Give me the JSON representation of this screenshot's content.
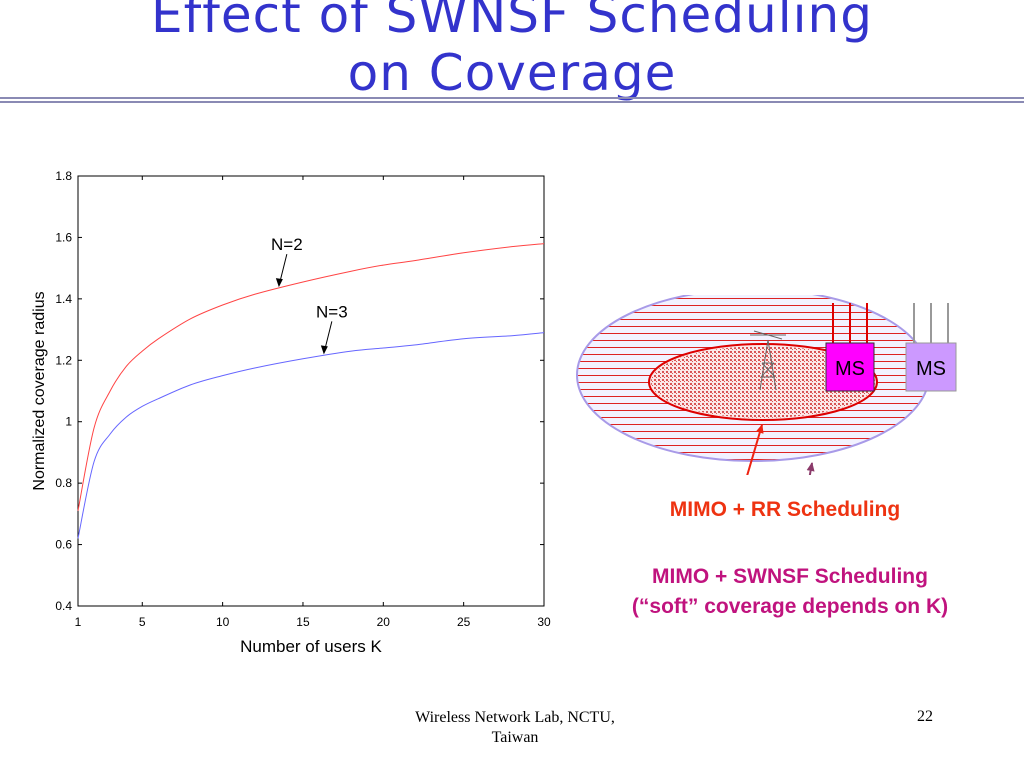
{
  "slide": {
    "title_line1": "Effect of SWNSF Scheduling",
    "title_line2": "on Coverage",
    "footer_line1": "Wireless Network Lab, NCTU,",
    "footer_line2": "Taiwan",
    "page_number": "22"
  },
  "chart_data": {
    "type": "line",
    "xlabel": "Number of users K",
    "ylabel": "Normalized coverage radius",
    "xlim": [
      1,
      30
    ],
    "ylim": [
      0.4,
      1.8
    ],
    "xticks": [
      1,
      5,
      10,
      15,
      20,
      25,
      30
    ],
    "yticks": [
      0.4,
      0.6,
      0.8,
      1.0,
      1.2,
      1.4,
      1.6,
      1.8
    ],
    "ytick_labels": [
      "0.4",
      "0.6",
      "0.8",
      "1",
      "1.2",
      "1.4",
      "1.6",
      "1.8"
    ],
    "grid": false,
    "series": [
      {
        "name": "N=2",
        "color": "#ff4444",
        "x": [
          1,
          2,
          3,
          4,
          5,
          6,
          8,
          10,
          12,
          15,
          18,
          20,
          22,
          25,
          28,
          30
        ],
        "values": [
          0.71,
          0.98,
          1.1,
          1.18,
          1.23,
          1.27,
          1.335,
          1.38,
          1.415,
          1.455,
          1.49,
          1.51,
          1.525,
          1.55,
          1.57,
          1.58
        ]
      },
      {
        "name": "N=3",
        "color": "#6666ff",
        "x": [
          1,
          2,
          3,
          4,
          5,
          6,
          8,
          10,
          12,
          15,
          18,
          20,
          22,
          25,
          28,
          30
        ],
        "values": [
          0.62,
          0.87,
          0.96,
          1.015,
          1.05,
          1.075,
          1.12,
          1.15,
          1.175,
          1.205,
          1.23,
          1.24,
          1.25,
          1.27,
          1.28,
          1.29
        ]
      }
    ],
    "annotations": [
      {
        "text": "N=2",
        "series": "N=2",
        "x": 13.5
      },
      {
        "text": "N=3",
        "series": "N=3",
        "x": 16.3
      }
    ]
  },
  "diagram": {
    "ms_label_inner": "MS",
    "ms_label_outer": "MS",
    "rr_caption": "MIMO + RR Scheduling",
    "swnsf_caption_line1": "MIMO + SWNSF Scheduling",
    "swnsf_caption_line2": "(“soft” coverage depends on K)",
    "colors": {
      "outer_fill": "#f2f2ff",
      "outer_stroke": "#a89ae8",
      "hatch": "#dd2222",
      "inner_stroke": "#dd0000",
      "ms_inner": "#ff00ff",
      "ms_outer": "#cc99ff",
      "rr_arrow": "#ee2211",
      "swnsf_arrow": "#8b3a6a"
    }
  }
}
